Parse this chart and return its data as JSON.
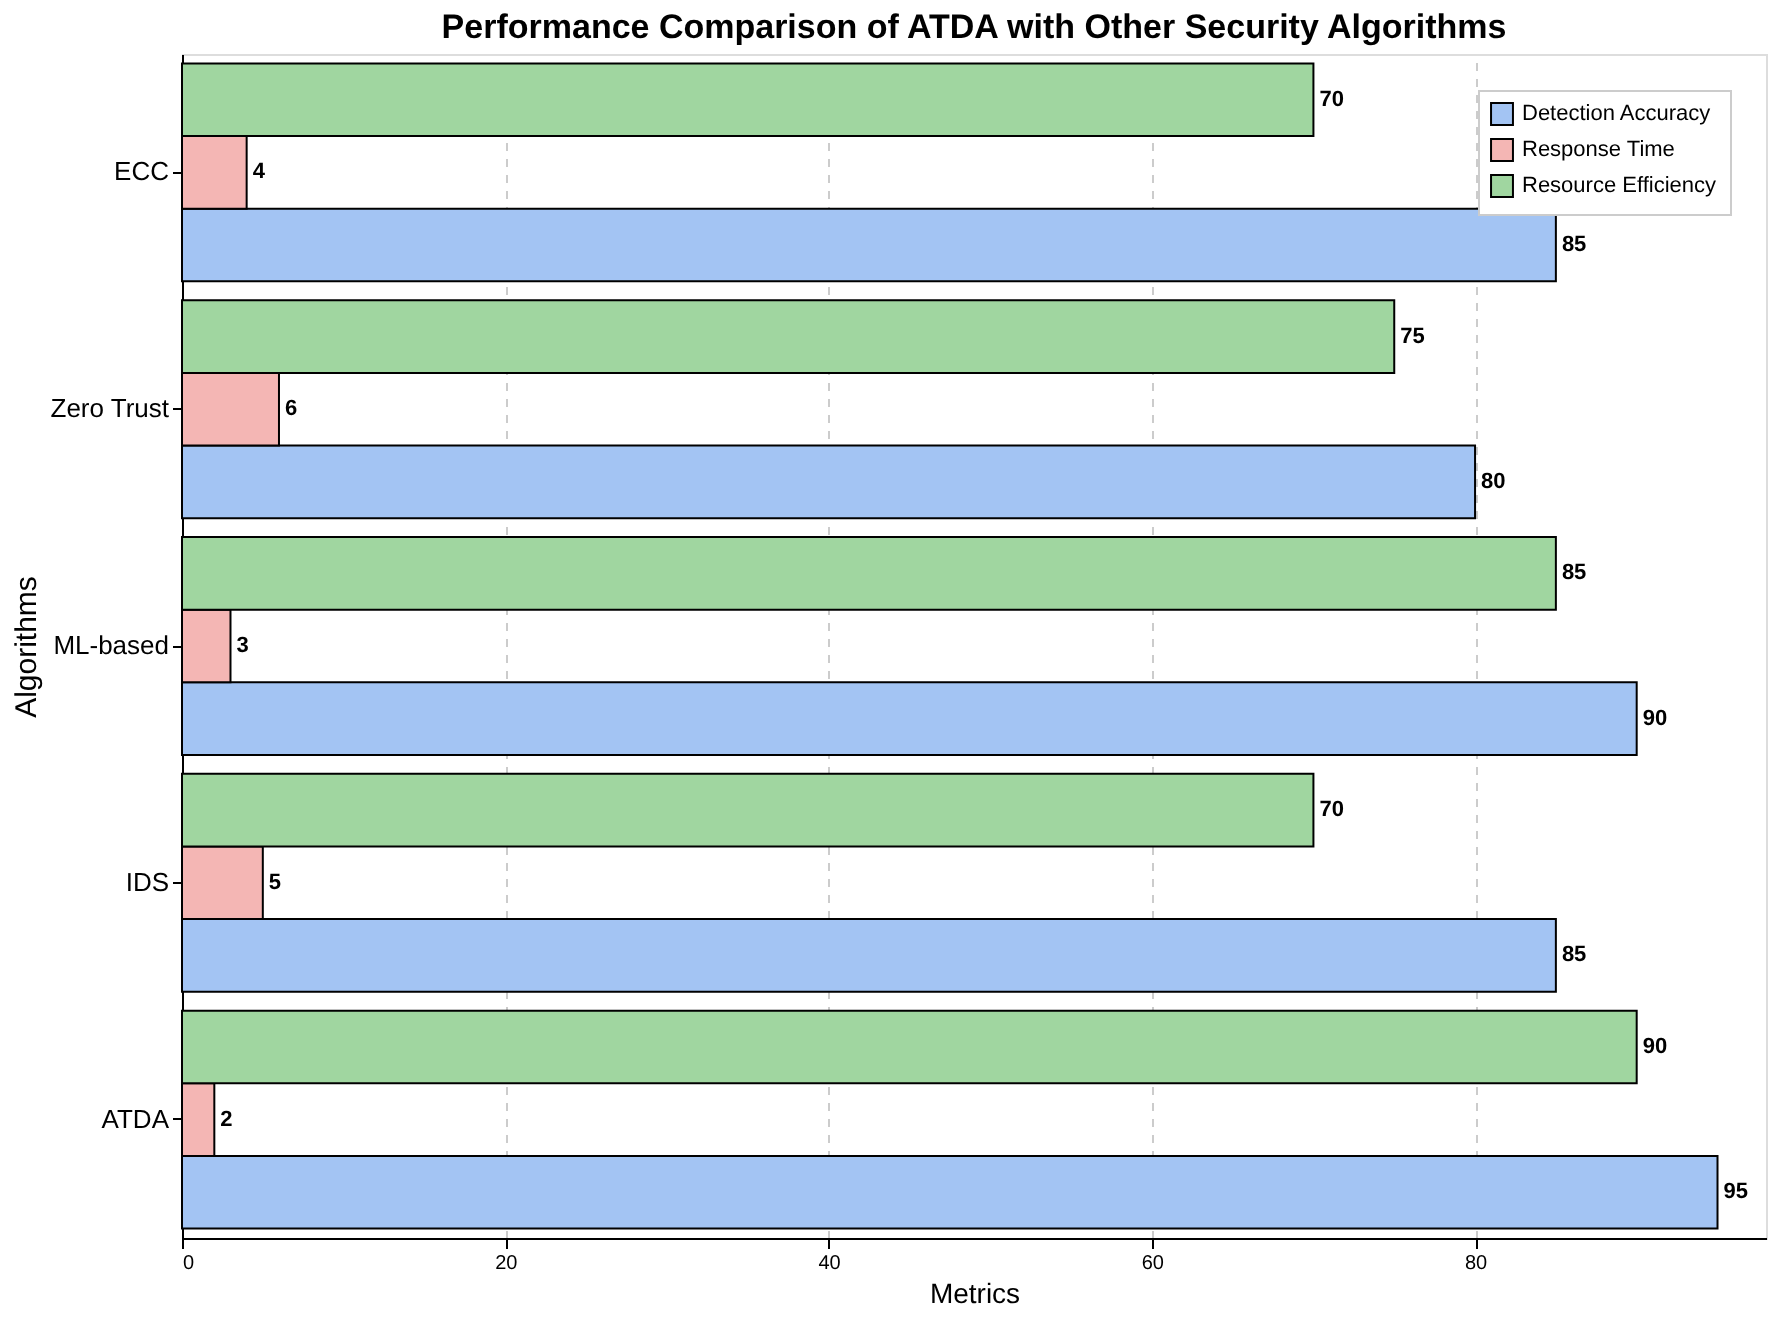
{
  "chart_data": {
    "type": "bar",
    "orientation": "horizontal",
    "title": "Performance Comparison of ATDA with Other Security Algorithms",
    "xlabel": "Metrics",
    "ylabel": "Algorithms",
    "categories": [
      "ECC",
      "Zero Trust",
      "ML-based",
      "IDS",
      "ATDA"
    ],
    "series": [
      {
        "name": "Detection Accuracy",
        "color": "#a3c4f3",
        "values": [
          85,
          80,
          90,
          85,
          95
        ]
      },
      {
        "name": "Response Time",
        "color": "#f4b6b4",
        "values": [
          4,
          6,
          3,
          5,
          2
        ]
      },
      {
        "name": "Resource Efficiency",
        "color": "#a0d6a0",
        "values": [
          70,
          75,
          85,
          70,
          90
        ]
      }
    ],
    "xlim": [
      0,
      98
    ],
    "xticks": [
      0,
      20,
      40,
      60,
      80
    ],
    "grid": "x",
    "legend": "top right",
    "data_labels": true
  }
}
